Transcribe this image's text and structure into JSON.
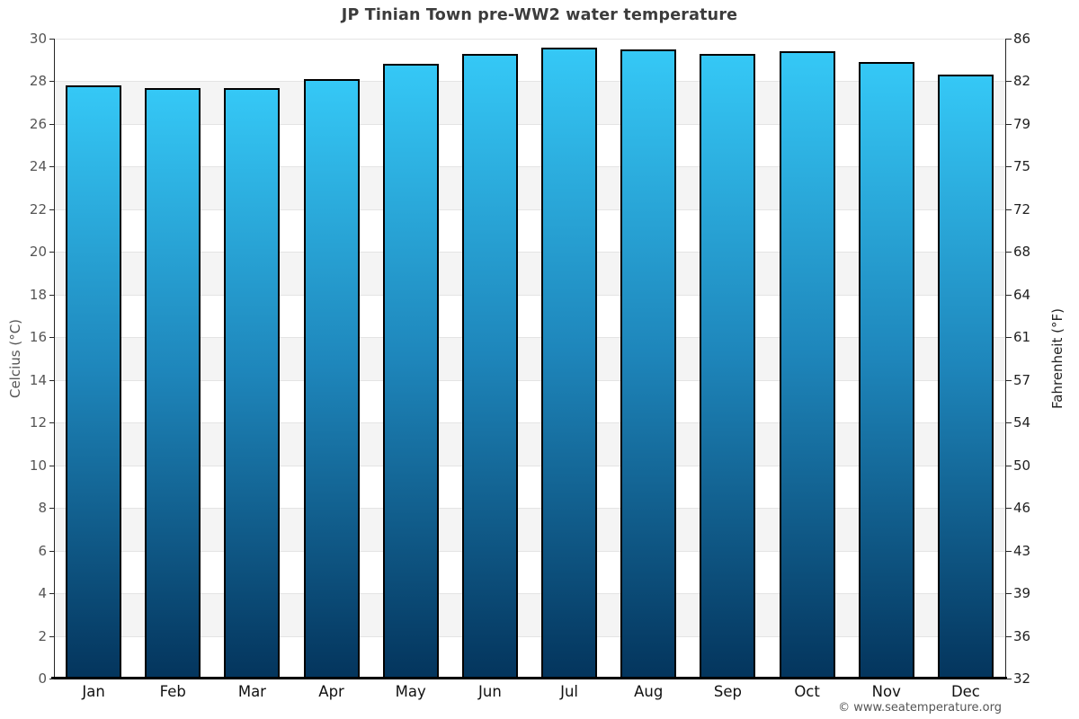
{
  "chart_data": {
    "type": "bar",
    "title": "JP Tinian Town pre-WW2 water temperature",
    "categories": [
      "Jan",
      "Feb",
      "Mar",
      "Apr",
      "May",
      "Jun",
      "Jul",
      "Aug",
      "Sep",
      "Oct",
      "Nov",
      "Dec"
    ],
    "values": [
      27.8,
      27.7,
      27.7,
      28.1,
      28.8,
      29.3,
      29.6,
      29.5,
      29.3,
      29.4,
      28.9,
      28.3
    ],
    "unit": "°C",
    "ylabel_left": "Celcius (°C)",
    "ylabel_right": "Fahrenheit (°F)",
    "ylim": [
      0,
      30
    ],
    "yticks_celsius": [
      30,
      28,
      26,
      24,
      22,
      20,
      18,
      16,
      14,
      12,
      10,
      8,
      6,
      4,
      2,
      0
    ],
    "yticks_fahrenheit": [
      86,
      82,
      79,
      75,
      72,
      68,
      64,
      61,
      57,
      54,
      50,
      46,
      43,
      39,
      36,
      32
    ],
    "legend": "none",
    "grid": "alternating horizontal bands every 2 degrees C",
    "colors": {
      "bar_gradient_top": "#35c8f6",
      "bar_gradient_mid": "#1e86bb",
      "bar_gradient_bottom": "#04355d",
      "bar_border": "#000000",
      "band_gray": "#f4f4f4",
      "band_white": "#ffffff",
      "gridline": "#e4e4e4",
      "axis": "#262626",
      "title_text": "#3c3c3c",
      "left_tick_text": "#555555",
      "right_tick_text": "#222222"
    }
  },
  "footer": {
    "text": "© www.seatemperature.org"
  }
}
